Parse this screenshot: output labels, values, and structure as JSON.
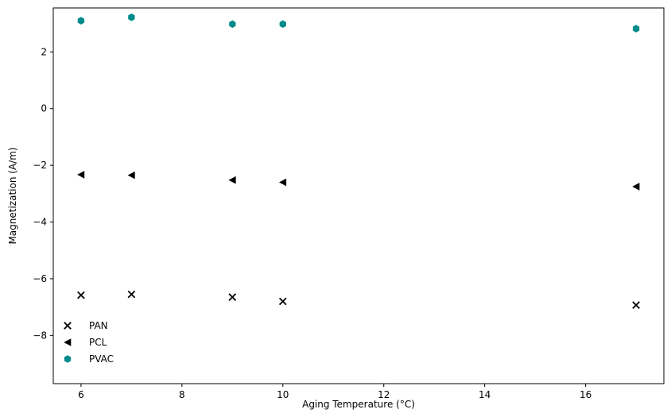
{
  "chart_data": {
    "type": "scatter",
    "title": "",
    "xlabel": "Aging Temperature (°C)",
    "ylabel": "Magnetization (A/m)",
    "xlim": [
      5.45,
      17.55
    ],
    "ylim": [
      -9.7,
      3.55
    ],
    "xticks": [
      6,
      8,
      10,
      12,
      14,
      16
    ],
    "yticks": [
      -8,
      -6,
      -4,
      -2,
      0,
      2
    ],
    "x": [
      6,
      7,
      9,
      10,
      17
    ],
    "grid": false,
    "legend_position": "lower-left",
    "series": [
      {
        "name": "PAN",
        "marker": "x",
        "color": "#000000",
        "y": [
          -6.58,
          -6.55,
          -6.65,
          -6.8,
          -6.93
        ]
      },
      {
        "name": "PCL",
        "marker": "triangle-left",
        "color": "#000000",
        "y": [
          -2.33,
          -2.35,
          -2.52,
          -2.6,
          -2.75
        ]
      },
      {
        "name": "PVAC",
        "marker": "hexagon",
        "color": "#008b8b",
        "y": [
          3.1,
          3.22,
          2.98,
          2.98,
          2.82
        ]
      }
    ]
  }
}
